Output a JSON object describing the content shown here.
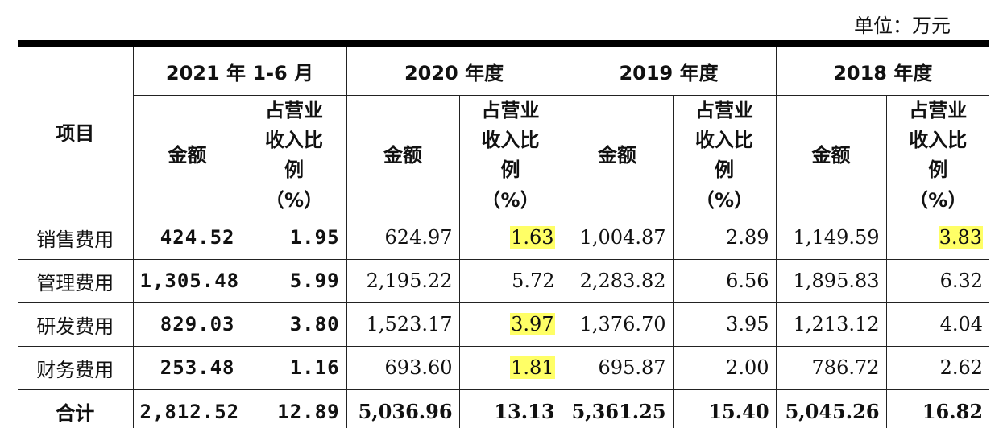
{
  "header": {
    "unit": "单位：万元"
  },
  "table": {
    "item_header": "项目",
    "periods": [
      "2021 年 1-6 月",
      "2020 年度",
      "2019 年度",
      "2018 年度"
    ],
    "subheaders": [
      "金额",
      "占营业收入比例（%）",
      "金额",
      "占营业收入比例（%）",
      "金额",
      "占营业收入比例（%）",
      "金额",
      "占营业收入比例（%）"
    ],
    "rows": [
      {
        "label": "销售费用",
        "cells": [
          "424.52",
          "1.95",
          "624.97",
          "1.63",
          "1,004.87",
          "2.89",
          "1,149.59",
          "3.83"
        ]
      },
      {
        "label": "管理费用",
        "cells": [
          "1,305.48",
          "5.99",
          "2,195.22",
          "5.72",
          "2,283.82",
          "6.56",
          "1,895.83",
          "6.32"
        ]
      },
      {
        "label": "研发费用",
        "cells": [
          "829.03",
          "3.80",
          "1,523.17",
          "3.97",
          "1,376.70",
          "3.95",
          "1,213.12",
          "4.04"
        ]
      },
      {
        "label": "财务费用",
        "cells": [
          "253.48",
          "1.16",
          "693.60",
          "1.81",
          "695.87",
          "2.00",
          "786.72",
          "2.62"
        ]
      },
      {
        "label": "合计",
        "cells": [
          "2,812.52",
          "12.89",
          "5,036.96",
          "13.13",
          "5,361.25",
          "15.40",
          "5,045.26",
          "16.82"
        ]
      }
    ]
  }
}
